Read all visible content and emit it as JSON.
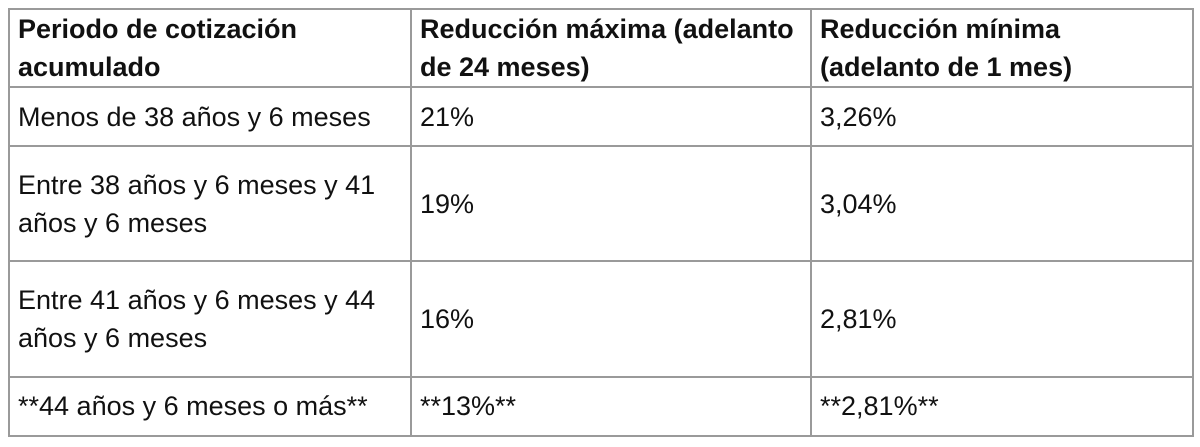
{
  "table": {
    "header": [
      "Periodo de cotización acumulado",
      "Reducción máxima (adelanto de 24 meses)",
      "Reducción mínima (adelanto de 1 mes)"
    ],
    "rows": [
      [
        "Menos de 38 años y 6 meses",
        "21%",
        "3,26%"
      ],
      [
        "Entre 38 años y 6 meses y 41 años y 6 meses",
        "19%",
        "3,04%"
      ],
      [
        "Entre 41 años y 6 meses y 44 años y 6 meses",
        "16%",
        "2,81%"
      ],
      [
        "**44 años y 6 meses o más**",
        "**13%**",
        "**2,81%**"
      ]
    ]
  }
}
